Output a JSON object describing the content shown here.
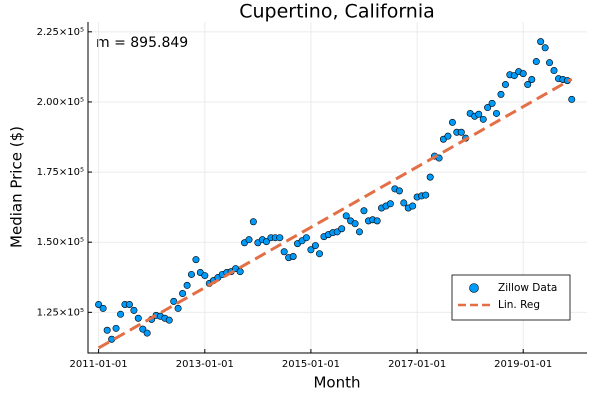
{
  "chart_data": {
    "type": "scatter",
    "title": "Cupertino, California",
    "xlabel": "Month",
    "ylabel": "Median Price ($)",
    "annotation": "m = 895.849",
    "xlim": [
      "2010-10-20",
      "2020-03-15"
    ],
    "xticks": [
      "2011-01-01",
      "2013-01-01",
      "2015-01-01",
      "2017-01-01",
      "2019-01-01"
    ],
    "ylim": [
      110500,
      228500
    ],
    "yticks": [
      {
        "value": 125000,
        "label": "1.25×10⁵"
      },
      {
        "value": 150000,
        "label": "1.50×10⁵"
      },
      {
        "value": 175000,
        "label": "1.75×10⁵"
      },
      {
        "value": 200000,
        "label": "2.00×10⁵"
      },
      {
        "value": 225000,
        "label": "2.25×10⁵"
      }
    ],
    "grid": true,
    "legend": "lower right",
    "series": [
      {
        "name": "Zillow Data",
        "type": "scatter",
        "color": "#009af9",
        "x": [
          "2011-01-01",
          "2011-02-01",
          "2011-03-01",
          "2011-04-01",
          "2011-05-01",
          "2011-06-01",
          "2011-07-01",
          "2011-08-01",
          "2011-09-01",
          "2011-10-01",
          "2011-11-01",
          "2011-12-01",
          "2012-01-01",
          "2012-02-01",
          "2012-03-01",
          "2012-04-01",
          "2012-05-01",
          "2012-06-01",
          "2012-07-01",
          "2012-08-01",
          "2012-09-01",
          "2012-10-01",
          "2012-11-01",
          "2012-12-01",
          "2013-01-01",
          "2013-02-01",
          "2013-03-01",
          "2013-04-01",
          "2013-05-01",
          "2013-06-01",
          "2013-07-01",
          "2013-08-01",
          "2013-09-01",
          "2013-10-01",
          "2013-11-01",
          "2013-12-01",
          "2014-01-01",
          "2014-02-01",
          "2014-03-01",
          "2014-04-01",
          "2014-05-01",
          "2014-06-01",
          "2014-07-01",
          "2014-08-01",
          "2014-09-01",
          "2014-10-01",
          "2014-11-01",
          "2014-12-01",
          "2015-01-01",
          "2015-02-01",
          "2015-03-01",
          "2015-04-01",
          "2015-05-01",
          "2015-06-01",
          "2015-07-01",
          "2015-08-01",
          "2015-09-01",
          "2015-10-01",
          "2015-11-01",
          "2015-12-01",
          "2016-01-01",
          "2016-02-01",
          "2016-03-01",
          "2016-04-01",
          "2016-05-01",
          "2016-06-01",
          "2016-07-01",
          "2016-08-01",
          "2016-09-01",
          "2016-10-01",
          "2016-11-01",
          "2016-12-01",
          "2017-01-01",
          "2017-02-01",
          "2017-03-01",
          "2017-04-01",
          "2017-05-01",
          "2017-06-01",
          "2017-07-01",
          "2017-08-01",
          "2017-09-01",
          "2017-10-01",
          "2017-11-01",
          "2017-12-01",
          "2018-01-01",
          "2018-02-01",
          "2018-03-01",
          "2018-04-01",
          "2018-05-01",
          "2018-06-01",
          "2018-07-01",
          "2018-08-01",
          "2018-09-01",
          "2018-10-01",
          "2018-11-01",
          "2018-12-01",
          "2019-01-01",
          "2019-02-01",
          "2019-03-01",
          "2019-04-01",
          "2019-05-01",
          "2019-06-01",
          "2019-07-01",
          "2019-08-01",
          "2019-09-01",
          "2019-10-01",
          "2019-11-01",
          "2019-12-01"
        ],
        "values": [
          127800,
          126400,
          118600,
          115400,
          119300,
          124300,
          127800,
          127800,
          125700,
          122900,
          119000,
          117600,
          122500,
          123900,
          123600,
          122900,
          122200,
          128900,
          126400,
          131700,
          134600,
          138500,
          143800,
          139200,
          138100,
          135300,
          136300,
          137400,
          138500,
          139200,
          139500,
          140600,
          139500,
          149800,
          150900,
          157300,
          149800,
          150900,
          150200,
          151600,
          151600,
          151600,
          146600,
          144500,
          144900,
          149500,
          150500,
          151600,
          147300,
          148800,
          145900,
          152000,
          152700,
          153400,
          153700,
          154800,
          159400,
          157600,
          156600,
          153700,
          161200,
          157600,
          158000,
          157600,
          162200,
          162900,
          163700,
          169000,
          168300,
          164000,
          162200,
          162900,
          166100,
          166500,
          166800,
          173200,
          180700,
          180000,
          186700,
          187800,
          192700,
          189200,
          189200,
          187100,
          195900,
          194900,
          195600,
          193800,
          198000,
          199500,
          195900,
          202700,
          206200,
          209700,
          209400,
          210800,
          210100,
          206200,
          208000,
          214400,
          221500,
          219300,
          214000,
          211200,
          208300,
          208000,
          207600,
          200900
        ]
      },
      {
        "name": "Lin. Reg",
        "type": "line",
        "color": "#e26f46",
        "x": [
          "2011-01-01",
          "2019-12-01"
        ],
        "values": [
          112300,
          208150
        ]
      }
    ]
  }
}
